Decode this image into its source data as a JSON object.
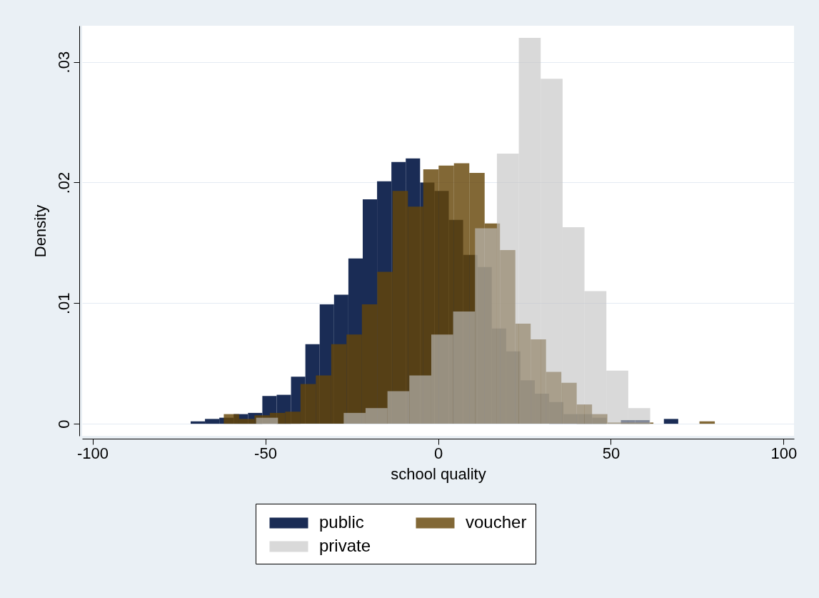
{
  "chart_data": {
    "type": "histogram",
    "xlabel": "school quality",
    "ylabel": "Density",
    "xlim": [
      -103,
      103
    ],
    "xticks": [
      -100,
      -50,
      0,
      50,
      100
    ],
    "ylim": [
      -0.001,
      0.033
    ],
    "yticks": [
      0,
      {
        "value": 0.01,
        "label": ".01"
      },
      {
        "value": 0.02,
        "label": ".02"
      },
      {
        "value": 0.03,
        "label": ".03"
      }
    ],
    "grid": "y",
    "legend": "bottom",
    "bins": [
      -71.6,
      -67.45,
      -63.3,
      -59.15,
      -55,
      -50.85,
      -46.7,
      -42.55,
      -38.4,
      -34.25,
      -30.1,
      -25.95,
      -21.8,
      -17.65,
      -13.5,
      -9.35,
      -5.2,
      -1.05,
      3.1,
      7.25,
      11.4,
      15.55,
      19.7,
      23.85,
      28,
      32.15,
      36.3,
      40.45,
      44.6,
      48.75,
      52.9,
      57.05,
      61.2,
      65.35,
      69.5
    ],
    "series": [
      {
        "name": "public",
        "color": "#1a2c55",
        "values": [
          0.0002,
          0.0004,
          0.0005,
          0.0008,
          0.0009,
          0.0023,
          0.0024,
          0.0039,
          0.0066,
          0.0099,
          0.0107,
          0.0137,
          0.0186,
          0.0201,
          0.0217,
          0.022,
          0.02,
          0.0193,
          0.0169,
          0.014,
          0.013,
          0.0079,
          0.006,
          0.0036,
          0.0025,
          0.0018,
          0.0008,
          0.0008,
          0.0005,
          null,
          0.0003,
          0.0003,
          0,
          0.0004
        ]
      },
      {
        "name": "voucher",
        "color": "#654508",
        "bins": [
          -62,
          -57.56,
          -53.12,
          -48.68,
          -44.24,
          -39.8,
          -35.36,
          -30.92,
          -26.48,
          -22.04,
          -17.6,
          -13.16,
          -8.72,
          -4.28,
          0.16,
          4.6,
          9.04,
          13.48,
          17.92,
          22.36,
          26.8,
          31.24,
          35.68,
          40.12,
          44.56,
          49,
          53.44,
          57.88,
          62.32,
          66.76,
          71.2,
          75.64,
          80.08
        ],
        "values": [
          0.0008,
          0.0004,
          0.0007,
          0.0009,
          0.001,
          0.0033,
          0.004,
          0.0066,
          0.0074,
          0.0099,
          0.0126,
          0.0193,
          0.018,
          0.0211,
          0.0214,
          0.0216,
          0.0208,
          0.0166,
          0.0144,
          0.0083,
          0.007,
          0.0043,
          0.0034,
          0.0016,
          0.0008,
          0.0001,
          0.0001,
          0.0001,
          0,
          0,
          0,
          0.0002
        ]
      },
      {
        "name": "private",
        "color": "#c2c2c2",
        "bins": [
          -52.65,
          -46.32,
          -39.98,
          -33.65,
          -27.31,
          -20.98,
          -14.64,
          -8.31,
          -1.97,
          4.36,
          10.7,
          17.03,
          23.37,
          29.7,
          36.04,
          42.37,
          48.71,
          55.04,
          61.38
        ],
        "values": [
          0.0005,
          0,
          0,
          0,
          0.0009,
          0.0013,
          0.0027,
          0.004,
          0.0074,
          0.0093,
          0.0162,
          0.0224,
          0.032,
          0.0286,
          0.0163,
          0.011,
          0.0044,
          0.0013
        ]
      }
    ]
  }
}
